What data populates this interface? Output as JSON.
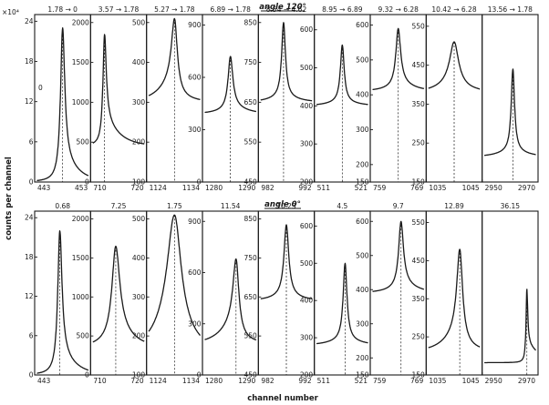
{
  "figure": {
    "title_top": "angle 120°",
    "title_bottom": "angle 0°",
    "xlabel": "channel number",
    "ylabel": "counts per channel",
    "scale_note": "×10⁴"
  },
  "chart_data": [
    {
      "type": "line",
      "row": 1,
      "col": 1,
      "header": "1.78 → 0",
      "xlim": [
        443,
        453
      ],
      "xticks": [
        "443",
        "453"
      ],
      "ylim": [
        0,
        25
      ],
      "yticks": [
        "0",
        "6",
        "12",
        "18",
        "24"
      ],
      "ytick_values": [
        0,
        6,
        12,
        18,
        24
      ],
      "peak_x": 448,
      "peak_y": 23,
      "base_y": 0,
      "width": 0.45,
      "left_tail": 0,
      "right_tail": 0.2,
      "annotation": "0"
    },
    {
      "type": "line",
      "row": 1,
      "col": 2,
      "header": "3.57 → 1.78",
      "xlim": [
        710,
        720
      ],
      "xticks": [
        "710",
        "720"
      ],
      "ylim": [
        0,
        2100
      ],
      "yticks": [
        "0",
        "500",
        "1000",
        "1500",
        "2000"
      ],
      "ytick_values": [
        0,
        500,
        1000,
        1500,
        2000
      ],
      "peak_x": 712.5,
      "peak_y": 1850,
      "base_y": 450,
      "width": 0.35,
      "left_tail": 0,
      "right_tail": 0.3
    },
    {
      "type": "line",
      "row": 1,
      "col": 3,
      "header": "5.27 → 1.78",
      "xlim": [
        1124,
        1134
      ],
      "xticks": [
        "1124",
        "1134"
      ],
      "ylim": [
        100,
        520
      ],
      "yticks": [
        "100",
        "200",
        "300",
        "400",
        "500"
      ],
      "ytick_values": [
        100,
        200,
        300,
        400,
        500
      ],
      "peak_x": 1129,
      "peak_y": 510,
      "base_y": 300,
      "width": 0.6,
      "left_tail": 0.4,
      "right_tail": 0.1
    },
    {
      "type": "line",
      "row": 1,
      "col": 4,
      "header": "6.89 → 1.78",
      "xlim": [
        1280,
        1290
      ],
      "xticks": [
        "1280",
        "1290"
      ],
      "ylim": [
        0,
        960
      ],
      "yticks": [
        "0",
        "300",
        "600",
        "900"
      ],
      "ytick_values": [
        0,
        300,
        600,
        900
      ],
      "peak_x": 1285,
      "peak_y": 720,
      "base_y": 390,
      "width": 0.5,
      "left_tail": 0.1,
      "right_tail": 0.2
    },
    {
      "type": "line",
      "row": 1,
      "col": 5,
      "header": "8.54 → 4.62",
      "xlim": [
        982,
        992
      ],
      "xticks": [
        "982",
        "992"
      ],
      "ylim": [
        450,
        870
      ],
      "yticks": [
        "450",
        "550",
        "650",
        "750",
        "850"
      ],
      "ytick_values": [
        450,
        550,
        650,
        750,
        850
      ],
      "peak_x": 986.5,
      "peak_y": 850,
      "base_y": 650,
      "width": 0.4,
      "left_tail": 0.1,
      "right_tail": 0.1
    },
    {
      "type": "line",
      "row": 1,
      "col": 6,
      "header": "8.95 → 6.89",
      "xlim": [
        511,
        521
      ],
      "xticks": [
        "511",
        "521"
      ],
      "ylim": [
        200,
        640
      ],
      "yticks": [
        "200",
        "300",
        "400",
        "500",
        "600"
      ],
      "ytick_values": [
        200,
        300,
        400,
        500,
        600
      ],
      "peak_x": 516,
      "peak_y": 560,
      "base_y": 400,
      "width": 0.4,
      "left_tail": 0.1,
      "right_tail": 0.1
    },
    {
      "type": "line",
      "row": 1,
      "col": 7,
      "header": "9.32 → 6.28",
      "xlim": [
        759,
        769
      ],
      "xticks": [
        "759",
        "769"
      ],
      "ylim": [
        150,
        630
      ],
      "yticks": [
        "150",
        "200",
        "300",
        "400",
        "500",
        "600"
      ],
      "ytick_values": [
        150,
        200,
        300,
        400,
        500,
        600
      ],
      "peak_x": 764,
      "peak_y": 590,
      "base_y": 410,
      "width": 0.5,
      "left_tail": 0.1,
      "right_tail": 0.2
    },
    {
      "type": "line",
      "row": 1,
      "col": 8,
      "header": "10.42 → 6.28",
      "xlim": [
        1035,
        1045
      ],
      "xticks": [
        "1035",
        "1045"
      ],
      "ylim": [
        150,
        580
      ],
      "yticks": [
        "150",
        "250",
        "350",
        "450",
        "550"
      ],
      "ytick_values": [
        150,
        250,
        350,
        450,
        550
      ],
      "peak_x": 1040,
      "peak_y": 510,
      "base_y": 380,
      "width": 0.9,
      "left_tail": 0.3,
      "right_tail": 0.2
    },
    {
      "type": "line",
      "row": 1,
      "col": 9,
      "header": "13.56 → 1.78",
      "xlim": [
        2950,
        2970
      ],
      "xticks": [
        "2950",
        "2970"
      ],
      "ylim": [
        0,
        80
      ],
      "yticks": [],
      "ytick_values": [],
      "peak_x": 2961,
      "peak_y": 54,
      "base_y": 12,
      "width": 0.7,
      "left_tail": 0.1,
      "right_tail": 0.1
    },
    {
      "type": "line",
      "row": 2,
      "col": 1,
      "header": "0.68",
      "xlim": [
        443,
        453
      ],
      "xticks": [
        "443"
      ],
      "ylim": [
        0,
        25
      ],
      "yticks": [
        "0",
        "6",
        "12",
        "18",
        "24"
      ],
      "ytick_values": [
        0,
        6,
        12,
        18,
        24
      ],
      "peak_x": 447.5,
      "peak_y": 22,
      "base_y": 0,
      "width": 0.45,
      "left_tail": 0,
      "right_tail": 0.2
    },
    {
      "type": "line",
      "row": 2,
      "col": 2,
      "header": "7.25",
      "xlim": [
        710,
        720
      ],
      "xticks": [
        "710",
        "720"
      ],
      "ylim": [
        0,
        2100
      ],
      "yticks": [
        "0",
        "500",
        "1000",
        "1500",
        "2000"
      ],
      "ytick_values": [
        0,
        500,
        1000,
        1500,
        2000
      ],
      "peak_x": 714.5,
      "peak_y": 1650,
      "base_y": 350,
      "width": 0.8,
      "left_tail": 0.1,
      "right_tail": 0.3
    },
    {
      "type": "line",
      "row": 2,
      "col": 3,
      "header": "1.75",
      "xlim": [
        1124,
        1134
      ],
      "xticks": [
        "1124",
        "1134"
      ],
      "ylim": [
        100,
        520
      ],
      "yticks": [
        "100",
        "200",
        "300",
        "400",
        "500"
      ],
      "ytick_values": [
        100,
        200,
        300,
        400,
        500
      ],
      "peak_x": 1129,
      "peak_y": 510,
      "base_y": 160,
      "width": 1.3,
      "left_tail": 0.5,
      "right_tail": 0.3
    },
    {
      "type": "line",
      "row": 2,
      "col": 4,
      "header": "11.54",
      "xlim": [
        1280,
        1290
      ],
      "xticks": [
        "1280",
        "1290"
      ],
      "ylim": [
        0,
        960
      ],
      "yticks": [
        "0",
        "300",
        "600",
        "900"
      ],
      "ytick_values": [
        0,
        300,
        600,
        900
      ],
      "peak_x": 1286,
      "peak_y": 680,
      "base_y": 180,
      "width": 0.6,
      "left_tail": 0.4,
      "right_tail": 0.1
    },
    {
      "type": "line",
      "row": 2,
      "col": 5,
      "header": "10.23",
      "xlim": [
        982,
        992
      ],
      "xticks": [
        "982",
        "992"
      ],
      "ylim": [
        450,
        870
      ],
      "yticks": [
        "450",
        "550",
        "650",
        "750",
        "850"
      ],
      "ytick_values": [
        450,
        550,
        650,
        750,
        850
      ],
      "peak_x": 987,
      "peak_y": 835,
      "base_y": 640,
      "width": 0.5,
      "left_tail": 0.1,
      "right_tail": 0.1
    },
    {
      "type": "line",
      "row": 2,
      "col": 6,
      "header": "4.5",
      "xlim": [
        511,
        521
      ],
      "xticks": [
        "511",
        "521"
      ],
      "ylim": [
        200,
        640
      ],
      "yticks": [
        "200",
        "300",
        "400",
        "500",
        "600"
      ],
      "ytick_values": [
        200,
        300,
        400,
        500,
        600
      ],
      "peak_x": 516.5,
      "peak_y": 500,
      "base_y": 280,
      "width": 0.4,
      "left_tail": 0.1,
      "right_tail": 0.1
    },
    {
      "type": "line",
      "row": 2,
      "col": 7,
      "header": "9.7",
      "xlim": [
        759,
        769
      ],
      "xticks": [
        "759",
        "769"
      ],
      "ylim": [
        150,
        630
      ],
      "yticks": [
        "150",
        "200",
        "300",
        "400",
        "500",
        "600"
      ],
      "ytick_values": [
        150,
        200,
        300,
        400,
        500,
        600
      ],
      "peak_x": 764.5,
      "peak_y": 600,
      "base_y": 390,
      "width": 0.5,
      "left_tail": 0.1,
      "right_tail": 0.2
    },
    {
      "type": "line",
      "row": 2,
      "col": 8,
      "header": "12.89",
      "xlim": [
        1035,
        1045
      ],
      "xticks": [
        "1035",
        "1045"
      ],
      "ylim": [
        150,
        580
      ],
      "yticks": [
        "150",
        "250",
        "350",
        "450",
        "550"
      ],
      "ytick_values": [
        150,
        250,
        350,
        450,
        550
      ],
      "peak_x": 1041,
      "peak_y": 480,
      "base_y": 210,
      "width": 0.6,
      "left_tail": 0.3,
      "right_tail": 0.1
    },
    {
      "type": "line",
      "row": 2,
      "col": 9,
      "header": "36.15",
      "xlim": [
        2950,
        2970
      ],
      "xticks": [
        "2950",
        "2970"
      ],
      "ylim": [
        0,
        80
      ],
      "yticks": [],
      "ytick_values": [],
      "peak_x": 2966,
      "peak_y": 42,
      "base_y": 6,
      "width": 0.35,
      "left_tail": 0,
      "right_tail": 0.3
    }
  ]
}
